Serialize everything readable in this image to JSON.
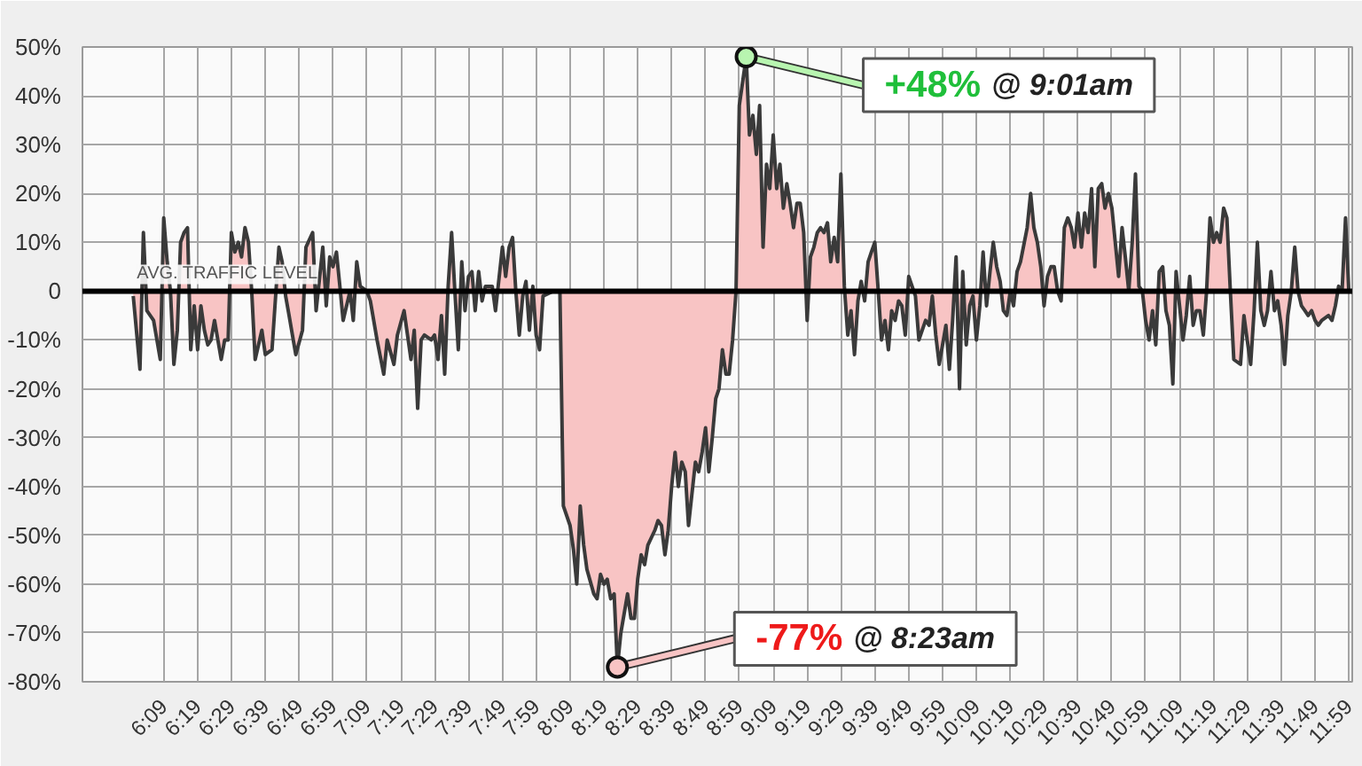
{
  "chart_data": {
    "type": "area",
    "color": "#3a3a3a",
    "grid": true,
    "xlim": [
      5.75,
      12.0
    ],
    "ylim": [
      -80,
      50
    ],
    "xticks": [
      {
        "value": 6.15,
        "label": "6:09"
      },
      {
        "value": 6.317,
        "label": "6:19"
      },
      {
        "value": 6.483,
        "label": "6:29"
      },
      {
        "value": 6.65,
        "label": "6:39"
      },
      {
        "value": 6.817,
        "label": "6:49"
      },
      {
        "value": 6.983,
        "label": "6:59"
      },
      {
        "value": 7.15,
        "label": "7:09"
      },
      {
        "value": 7.317,
        "label": "7:19"
      },
      {
        "value": 7.483,
        "label": "7:29"
      },
      {
        "value": 7.65,
        "label": "7:39"
      },
      {
        "value": 7.817,
        "label": "7:49"
      },
      {
        "value": 7.983,
        "label": "7:59"
      },
      {
        "value": 8.15,
        "label": "8:09"
      },
      {
        "value": 8.317,
        "label": "8:19"
      },
      {
        "value": 8.483,
        "label": "8:29"
      },
      {
        "value": 8.65,
        "label": "8:39"
      },
      {
        "value": 8.817,
        "label": "8:49"
      },
      {
        "value": 8.983,
        "label": "8:59"
      },
      {
        "value": 9.15,
        "label": "9:09"
      },
      {
        "value": 9.317,
        "label": "9:19"
      },
      {
        "value": 9.483,
        "label": "9:29"
      },
      {
        "value": 9.65,
        "label": "9:39"
      },
      {
        "value": 9.817,
        "label": "9:49"
      },
      {
        "value": 9.983,
        "label": "9:59"
      },
      {
        "value": 10.15,
        "label": "10:09"
      },
      {
        "value": 10.317,
        "label": "10:19"
      },
      {
        "value": 10.483,
        "label": "10:29"
      },
      {
        "value": 10.65,
        "label": "10:39"
      },
      {
        "value": 10.817,
        "label": "10:49"
      },
      {
        "value": 10.983,
        "label": "10:59"
      },
      {
        "value": 11.15,
        "label": "11:09"
      },
      {
        "value": 11.317,
        "label": "11:19"
      },
      {
        "value": 11.483,
        "label": "11:29"
      },
      {
        "value": 11.65,
        "label": "11:39"
      },
      {
        "value": 11.817,
        "label": "11:49"
      },
      {
        "value": 11.983,
        "label": "11:59"
      }
    ],
    "yticks": [
      {
        "value": -80,
        "label": "-80%"
      },
      {
        "value": -70,
        "label": "-70%"
      },
      {
        "value": -60,
        "label": "-60%"
      },
      {
        "value": -50,
        "label": "-50%"
      },
      {
        "value": -40,
        "label": "-40%"
      },
      {
        "value": -30,
        "label": "-30%"
      },
      {
        "value": -20,
        "label": "-20%"
      },
      {
        "value": -10,
        "label": "-10%"
      },
      0,
      {
        "value": 10,
        "label": "10%"
      },
      {
        "value": 20,
        "label": "20%"
      },
      {
        "value": 30,
        "label": "30%"
      },
      {
        "value": 40,
        "label": "40%"
      },
      {
        "value": 50,
        "label": "50%"
      }
    ],
    "ref_lines": [
      {
        "axis": "y",
        "value": 0,
        "label": "AVG. TRAFFIC LEVEL",
        "color": "#000000"
      }
    ],
    "annotations": [
      {
        "text": "+48% @ 9:01am",
        "x": 9.017,
        "y": 48
      },
      {
        "text": "-77% @ 8:23am",
        "x": 8.383,
        "y": -77
      }
    ],
    "x": [
      6.0,
      6.033,
      6.05,
      6.067,
      6.1,
      6.133,
      6.15,
      6.167,
      6.183,
      6.2,
      6.217,
      6.233,
      6.25,
      6.267,
      6.283,
      6.3,
      6.317,
      6.333,
      6.35,
      6.367,
      6.383,
      6.4,
      6.433,
      6.45,
      6.467,
      6.483,
      6.5,
      6.517,
      6.533,
      6.55,
      6.567,
      6.583,
      6.6,
      6.633,
      6.65,
      6.683,
      6.717,
      6.733,
      6.75,
      6.767,
      6.8,
      6.833,
      6.85,
      6.883,
      6.9,
      6.933,
      6.95,
      6.967,
      6.983,
      7.0,
      7.017,
      7.033,
      7.067,
      7.083,
      7.1,
      7.117,
      7.15,
      7.167,
      7.2,
      7.233,
      7.25,
      7.283,
      7.3,
      7.333,
      7.367,
      7.383,
      7.4,
      7.417,
      7.433,
      7.467,
      7.483,
      7.5,
      7.517,
      7.533,
      7.55,
      7.567,
      7.583,
      7.6,
      7.617,
      7.633,
      7.65,
      7.667,
      7.683,
      7.7,
      7.717,
      7.733,
      7.767,
      7.783,
      7.817,
      7.833,
      7.85,
      7.867,
      7.883,
      7.9,
      7.917,
      7.933,
      7.95,
      7.967,
      7.983,
      8.0,
      8.017,
      8.067,
      8.1,
      8.117,
      8.15,
      8.167,
      8.183,
      8.2,
      8.217,
      8.233,
      8.267,
      8.283,
      8.3,
      8.317,
      8.333,
      8.35,
      8.367,
      8.383,
      8.4,
      8.433,
      8.45,
      8.467,
      8.483,
      8.5,
      8.517,
      8.533,
      8.567,
      8.583,
      8.6,
      8.617,
      8.633,
      8.65,
      8.667,
      8.683,
      8.7,
      8.717,
      8.733,
      8.767,
      8.783,
      8.8,
      8.817,
      8.833,
      8.85,
      8.867,
      8.883,
      8.9,
      8.917,
      8.933,
      8.95,
      8.967,
      8.983,
      9.017,
      9.033,
      9.05,
      9.067,
      9.083,
      9.1,
      9.117,
      9.133,
      9.15,
      9.167,
      9.183,
      9.2,
      9.217,
      9.233,
      9.25,
      9.267,
      9.283,
      9.3,
      9.317,
      9.333,
      9.35,
      9.367,
      9.383,
      9.4,
      9.417,
      9.433,
      9.45,
      9.467,
      9.483,
      9.5,
      9.517,
      9.533,
      9.55,
      9.567,
      9.583,
      9.6,
      9.617,
      9.633,
      9.65,
      9.667,
      9.683,
      9.7,
      9.717,
      9.733,
      9.75,
      9.767,
      9.783,
      9.8,
      9.817,
      9.85,
      9.867,
      9.9,
      9.917,
      9.933,
      9.95,
      9.967,
      10.0,
      10.017,
      10.033,
      10.05,
      10.067,
      10.083,
      10.1,
      10.117,
      10.133,
      10.15,
      10.167,
      10.183,
      10.2,
      10.217,
      10.233,
      10.25,
      10.267,
      10.283,
      10.3,
      10.317,
      10.333,
      10.35,
      10.367,
      10.4,
      10.417,
      10.433,
      10.45,
      10.467,
      10.483,
      10.5,
      10.517,
      10.533,
      10.55,
      10.567,
      10.583,
      10.6,
      10.617,
      10.633,
      10.65,
      10.667,
      10.683,
      10.7,
      10.717,
      10.733,
      10.75,
      10.767,
      10.783,
      10.8,
      10.817,
      10.85,
      10.867,
      10.883,
      10.9,
      10.917,
      10.933,
      10.95,
      10.967,
      10.983,
      11.0,
      11.017,
      11.033,
      11.05,
      11.067,
      11.083,
      11.1,
      11.117,
      11.133,
      11.15,
      11.167,
      11.183,
      11.2,
      11.217,
      11.233,
      11.25,
      11.267,
      11.283,
      11.3,
      11.317,
      11.333,
      11.35,
      11.367,
      11.383,
      11.4,
      11.417,
      11.45,
      11.467,
      11.483,
      11.5,
      11.517,
      11.533,
      11.55,
      11.567,
      11.583,
      11.6,
      11.617,
      11.633,
      11.65,
      11.667,
      11.683,
      11.7,
      11.717,
      11.733,
      11.75,
      11.767,
      11.783,
      11.8,
      11.817,
      11.833,
      11.85,
      11.883,
      11.9,
      11.917,
      11.933,
      11.95,
      11.967,
      11.983
    ],
    "values": [
      -1,
      -16,
      12,
      -4,
      -6,
      -14,
      15,
      6,
      0,
      -15,
      -8,
      10,
      12,
      13,
      -12,
      -3,
      -12,
      -3,
      -8,
      -11,
      -10,
      -6,
      -14,
      -10,
      -10,
      12,
      8,
      10,
      7,
      13,
      10,
      0,
      -14,
      -8,
      -13,
      -12,
      9,
      6,
      -1,
      -5,
      -13,
      -8,
      9,
      12,
      -4,
      9,
      -3,
      7,
      5,
      8,
      1,
      -6,
      0,
      -6,
      6,
      1,
      0,
      -2,
      -10,
      -17,
      -10,
      -15,
      -9,
      -4,
      -14,
      -8,
      -24,
      -10,
      -9,
      -10,
      -9,
      -14,
      -5,
      -17,
      1,
      12,
      0,
      -12,
      6,
      -4,
      3,
      4,
      -4,
      4,
      -2,
      1,
      1,
      -4,
      9,
      3,
      9,
      11,
      0,
      -9,
      -1,
      2,
      -8,
      1,
      -9,
      -12,
      -1,
      0,
      0,
      -44,
      -48,
      -53,
      -60,
      -44,
      -52,
      -57,
      -62,
      -63,
      -58,
      -60,
      -59,
      -63,
      -62,
      -77,
      -70,
      -62,
      -67,
      -67,
      -59,
      -54,
      -56,
      -52,
      -49,
      -47,
      -48,
      -54,
      -49,
      -40,
      -33,
      -40,
      -35,
      -37,
      -48,
      -35,
      -37,
      -33,
      -28,
      -37,
      -30,
      -22,
      -20,
      -12,
      -17,
      -17,
      -10,
      0,
      38,
      48,
      32,
      36,
      28,
      38,
      9,
      26,
      21,
      32,
      21,
      26,
      17,
      22,
      18,
      13,
      18,
      18,
      12,
      -6,
      7,
      9,
      12,
      13,
      12,
      14,
      6,
      11,
      6,
      24,
      1,
      -9,
      -4,
      -13,
      -2,
      2,
      -2,
      6,
      8,
      10,
      0,
      -10,
      -6,
      -12,
      -4,
      -6,
      -2,
      -3,
      -9,
      3,
      -1,
      -10,
      -6,
      -7,
      -1,
      -9,
      -15,
      -7,
      -16,
      -6,
      7,
      -20,
      4,
      -11,
      -3,
      -1,
      -10,
      -3,
      8,
      -3,
      4,
      10,
      5,
      2,
      -4,
      -5,
      0,
      -3,
      4,
      6,
      13,
      20,
      13,
      10,
      5,
      -3,
      3,
      5,
      5,
      0,
      -2,
      13,
      15,
      13,
      9,
      16,
      9,
      16,
      12,
      21,
      5,
      21,
      22,
      17,
      20,
      17,
      3,
      13,
      7,
      0,
      10,
      24,
      1,
      0,
      -6,
      -10,
      -4,
      -11,
      4,
      5,
      -4,
      -7,
      -19,
      4,
      -3,
      -10,
      -5,
      3,
      -7,
      -4,
      -4,
      -9,
      0,
      15,
      10,
      12,
      10,
      17,
      15,
      0,
      -14,
      -15,
      -5,
      -10,
      -15,
      -4,
      10,
      -4,
      -7,
      -4,
      4,
      -4,
      -2,
      -7,
      -15,
      -5,
      0,
      9,
      0,
      -3,
      -4,
      -5,
      -4,
      -6,
      -7,
      -6,
      -5,
      -6,
      -3,
      1,
      0,
      15,
      0
    ]
  }
}
